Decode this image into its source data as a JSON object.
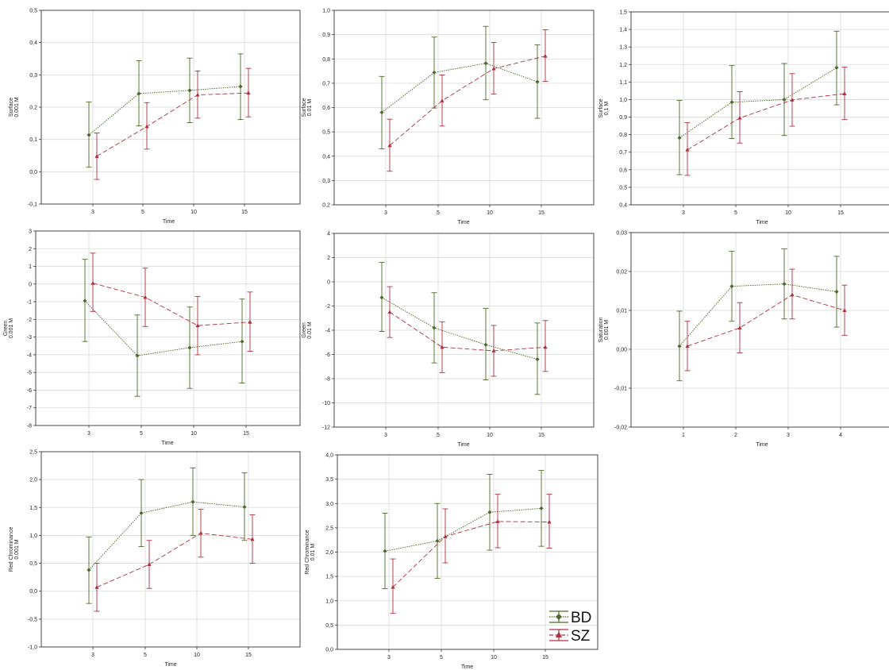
{
  "figure": {
    "legend_position": "bottom-right"
  },
  "colors": {
    "BD": "#4d6b2a",
    "SZ": "#b03040",
    "grid": "#d9d9d9",
    "axis": "#333333"
  },
  "legend": [
    {
      "name": "BD",
      "marker": "diamond",
      "line": "dotted"
    },
    {
      "name": "SZ",
      "marker": "triangle",
      "line": "dashed"
    }
  ],
  "chart_data": [
    {
      "type": "line",
      "xlabel": "Time",
      "ylabel": "Surface",
      "ylabel2": "0.001 M",
      "categories": [
        "3",
        "5",
        "10",
        "15"
      ],
      "ylim": [
        -0.1,
        0.5
      ],
      "yticks": [
        "-0,1",
        "0,0",
        "0,1",
        "0,2",
        "0,3",
        "0,4",
        "0,5"
      ],
      "series": [
        {
          "name": "BD",
          "values": [
            0.114,
            0.242,
            0.252,
            0.264
          ],
          "lower": [
            0.014,
            0.142,
            0.152,
            0.162
          ],
          "upper": [
            0.216,
            0.344,
            0.352,
            0.365
          ]
        },
        {
          "name": "SZ",
          "values": [
            0.048,
            0.14,
            0.238,
            0.244
          ],
          "lower": [
            -0.024,
            0.07,
            0.166,
            0.17
          ],
          "upper": [
            0.12,
            0.214,
            0.312,
            0.32
          ]
        }
      ]
    },
    {
      "type": "line",
      "xlabel": "Time",
      "ylabel": "Surface",
      "ylabel2": "0.01 M",
      "categories": [
        "3",
        "5",
        "10",
        "15"
      ],
      "ylim": [
        0.2,
        1.0
      ],
      "yticks": [
        "0,2",
        "0,3",
        "0,4",
        "0,5",
        "0,6",
        "0,7",
        "0,8",
        "0,9",
        "1,0"
      ],
      "series": [
        {
          "name": "BD",
          "values": [
            0.58,
            0.744,
            0.782,
            0.706
          ],
          "lower": [
            0.43,
            0.598,
            0.632,
            0.556
          ],
          "upper": [
            0.728,
            0.89,
            0.934,
            0.858
          ]
        },
        {
          "name": "SZ",
          "values": [
            0.444,
            0.628,
            0.76,
            0.812
          ],
          "lower": [
            0.338,
            0.524,
            0.656,
            0.708
          ],
          "upper": [
            0.552,
            0.734,
            0.868,
            0.92
          ]
        }
      ]
    },
    {
      "type": "line",
      "xlabel": "Time",
      "ylabel": "Surface",
      "ylabel2": "0.1 M",
      "categories": [
        "3",
        "5",
        "10",
        "15"
      ],
      "ylim": [
        0.4,
        1.5
      ],
      "yticks": [
        "0,4",
        "0,5",
        "0,6",
        "0,7",
        "0,8",
        "0,9",
        "1,0",
        "1,1",
        "1,2",
        "1,3",
        "1,4",
        "1,5"
      ],
      "series": [
        {
          "name": "BD",
          "values": [
            0.782,
            0.985,
            1.0,
            1.182
          ],
          "lower": [
            0.572,
            0.778,
            0.795,
            0.97
          ],
          "upper": [
            0.995,
            1.194,
            1.206,
            1.39
          ]
        },
        {
          "name": "SZ",
          "values": [
            0.714,
            0.895,
            0.998,
            1.034
          ],
          "lower": [
            0.568,
            0.752,
            0.848,
            0.886
          ],
          "upper": [
            0.868,
            1.045,
            1.148,
            1.185
          ]
        }
      ]
    },
    {
      "type": "line",
      "xlabel": "Time",
      "ylabel": "Green",
      "ylabel2": "0.001 M",
      "categories": [
        "3",
        "5",
        "10",
        "15"
      ],
      "ylim": [
        -8,
        3
      ],
      "yticks": [
        "-8",
        "-7",
        "-6",
        "-5",
        "-4",
        "-3",
        "-2",
        "-1",
        "0",
        "1",
        "2",
        "3"
      ],
      "series": [
        {
          "name": "BD",
          "values": [
            -0.95,
            -4.05,
            -3.6,
            -3.25
          ],
          "lower": [
            -3.25,
            -6.35,
            -5.9,
            -5.6
          ],
          "upper": [
            1.4,
            -1.75,
            -1.3,
            -0.85
          ]
        },
        {
          "name": "SZ",
          "values": [
            0.05,
            -0.75,
            -2.35,
            -2.15
          ],
          "lower": [
            -1.55,
            -2.4,
            -4.0,
            -3.8
          ],
          "upper": [
            1.75,
            0.9,
            -0.7,
            -0.45
          ]
        }
      ]
    },
    {
      "type": "line",
      "xlabel": "Time",
      "ylabel": "Green",
      "ylabel2": "0.01 M",
      "categories": [
        "3",
        "5",
        "10",
        "15"
      ],
      "ylim": [
        -12,
        4
      ],
      "yticks": [
        "-12",
        "-10",
        "-8",
        "-6",
        "-4",
        "-2",
        "0",
        "2",
        "4"
      ],
      "series": [
        {
          "name": "BD",
          "values": [
            -1.3,
            -3.8,
            -5.2,
            -6.4
          ],
          "lower": [
            -4.1,
            -6.7,
            -8.1,
            -9.3
          ],
          "upper": [
            1.6,
            -0.9,
            -2.2,
            -3.4
          ]
        },
        {
          "name": "SZ",
          "values": [
            -2.5,
            -5.4,
            -5.7,
            -5.4
          ],
          "lower": [
            -4.6,
            -7.5,
            -7.8,
            -7.4
          ],
          "upper": [
            -0.4,
            -3.3,
            -3.6,
            -3.2
          ]
        }
      ]
    },
    {
      "type": "line",
      "xlabel": "Time",
      "ylabel": "Saturation",
      "ylabel2": "0.001 M",
      "categories": [
        "1",
        "2",
        "3",
        "4"
      ],
      "ylim": [
        -0.02,
        0.03
      ],
      "yticks": [
        "-0,02",
        "-0,01",
        "0,00",
        "0,01",
        "0,02",
        "0,03"
      ],
      "series": [
        {
          "name": "BD",
          "values": [
            0.0008,
            0.0162,
            0.0168,
            0.0148
          ],
          "lower": [
            -0.0081,
            0.0072,
            0.0078,
            0.0057
          ],
          "upper": [
            0.0098,
            0.0252,
            0.0258,
            0.0239
          ]
        },
        {
          "name": "SZ",
          "values": [
            0.0008,
            0.0055,
            0.014,
            0.01
          ],
          "lower": [
            -0.0055,
            -0.0009,
            0.0078,
            0.0036
          ],
          "upper": [
            0.0072,
            0.012,
            0.0206,
            0.0165
          ]
        }
      ]
    },
    {
      "type": "line",
      "xlabel": "Time",
      "ylabel": "Red Chrominance",
      "ylabel2": "0.001 M",
      "categories": [
        "3",
        "5",
        "10",
        "15"
      ],
      "ylim": [
        -1.0,
        2.5
      ],
      "yticks": [
        "-1,0",
        "-0,5",
        "0,0",
        "0,5",
        "1,0",
        "1,5",
        "2,0",
        "2,5"
      ],
      "series": [
        {
          "name": "BD",
          "values": [
            0.38,
            1.4,
            1.6,
            1.51
          ],
          "lower": [
            -0.22,
            0.8,
            1.0,
            0.91
          ],
          "upper": [
            0.97,
            2.0,
            2.21,
            2.12
          ]
        },
        {
          "name": "SZ",
          "values": [
            0.07,
            0.48,
            1.04,
            0.93
          ],
          "lower": [
            -0.36,
            0.05,
            0.61,
            0.5
          ],
          "upper": [
            0.5,
            0.91,
            1.47,
            1.37
          ]
        }
      ]
    },
    {
      "type": "line",
      "xlabel": "Time",
      "ylabel": "Red Chrominance",
      "ylabel2": "0.01 M",
      "categories": [
        "3",
        "5",
        "10",
        "15"
      ],
      "ylim": [
        0.0,
        4.0
      ],
      "yticks": [
        "0,0",
        "0,5",
        "1,0",
        "1,5",
        "2,0",
        "2,5",
        "3,0",
        "3,5",
        "4,0"
      ],
      "series": [
        {
          "name": "BD",
          "values": [
            2.02,
            2.23,
            2.82,
            2.9
          ],
          "lower": [
            1.25,
            1.46,
            2.04,
            2.12
          ],
          "upper": [
            2.8,
            3.0,
            3.6,
            3.68
          ]
        },
        {
          "name": "SZ",
          "values": [
            1.28,
            2.32,
            2.63,
            2.62
          ],
          "lower": [
            0.74,
            1.78,
            2.09,
            2.08
          ],
          "upper": [
            1.86,
            2.89,
            3.19,
            3.19
          ]
        }
      ]
    }
  ]
}
